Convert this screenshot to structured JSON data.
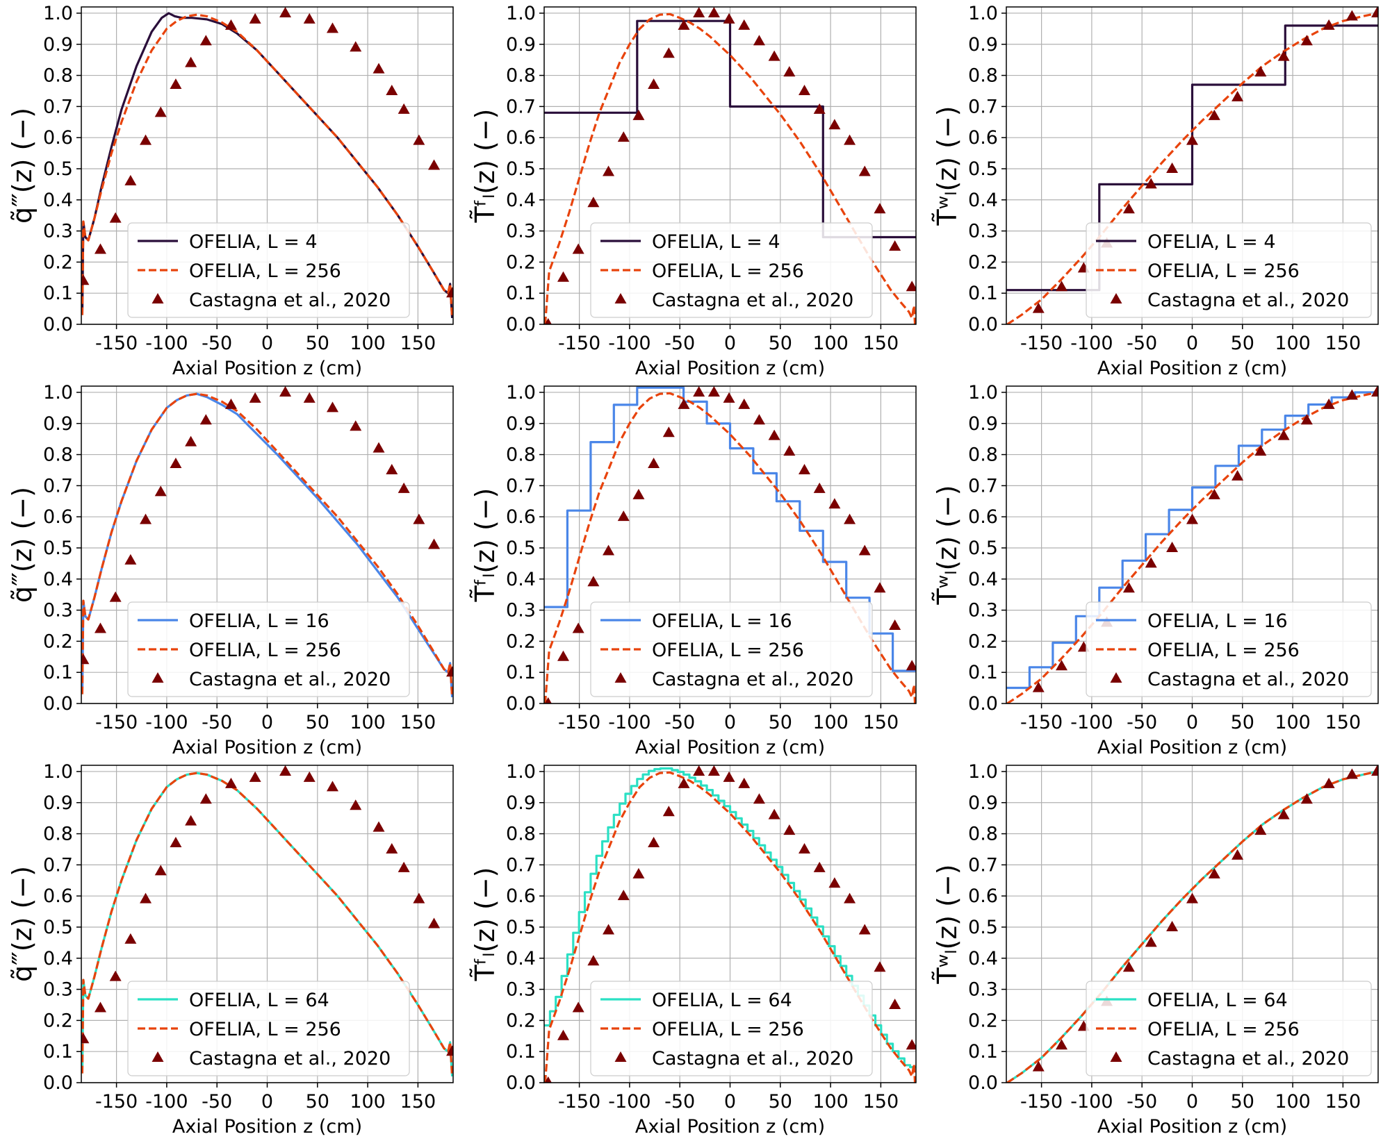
{
  "figure": {
    "colors": {
      "L4": "#2a0e3a",
      "L16": "#4a86e8",
      "L64": "#2be0c4",
      "L256": "#e8430c",
      "castagna": "#7a0000",
      "grid": "#b0b0b0"
    }
  },
  "chart_data": [
    {
      "type": "line",
      "variable": "q",
      "ylabel": "q̃‴(z) (−)",
      "xlabel": "Axial Position z (cm)",
      "x_ticks": [
        "-150",
        "-100",
        "-50",
        "0",
        "50",
        "100",
        "150"
      ],
      "y_ticks": [
        "0.0",
        "0.1",
        "0.2",
        "0.3",
        "0.4",
        "0.5",
        "0.6",
        "0.7",
        "0.8",
        "0.9",
        "1.0"
      ],
      "xlim": [
        -185,
        185
      ],
      "ylim": [
        0,
        1.02
      ],
      "grid": true,
      "legend_position": "lower-center",
      "series": [
        {
          "name": "OFELIA, L = 4",
          "style": "solid",
          "color_key": "L4",
          "shape": "q-l4"
        },
        {
          "name": "OFELIA, L = 256",
          "style": "dashed",
          "color_key": "L256",
          "shape": "q-ref"
        },
        {
          "name": "Castagna et al., 2020",
          "style": "markers",
          "color_key": "castagna",
          "shape": "castagna-q"
        }
      ]
    },
    {
      "type": "line",
      "variable": "tf",
      "ylabel": "T̃ᶠₗ(z) (−)",
      "xlabel": "Axial Position z (cm)",
      "x_ticks": [
        "-150",
        "-100",
        "-50",
        "0",
        "50",
        "100",
        "150"
      ],
      "y_ticks": [
        "0.0",
        "0.1",
        "0.2",
        "0.3",
        "0.4",
        "0.5",
        "0.6",
        "0.7",
        "0.8",
        "0.9",
        "1.0"
      ],
      "xlim": [
        -185,
        185
      ],
      "ylim": [
        0,
        1.02
      ],
      "grid": true,
      "legend_position": "lower-center",
      "series": [
        {
          "name": "OFELIA, L = 4",
          "style": "solid",
          "color_key": "L4",
          "shape": "steps",
          "steps": [
            0.68,
            0.975,
            0.7,
            0.28
          ]
        },
        {
          "name": "OFELIA, L = 256",
          "style": "dashed",
          "color_key": "L256",
          "shape": "tf-ref"
        },
        {
          "name": "Castagna et al., 2020",
          "style": "markers",
          "color_key": "castagna",
          "shape": "castagna-tf"
        }
      ]
    },
    {
      "type": "line",
      "variable": "tw",
      "ylabel": "T̃ʷₗ(z) (−)",
      "xlabel": "Axial Position z (cm)",
      "x_ticks": [
        "-150",
        "-100",
        "-50",
        "0",
        "50",
        "100",
        "150"
      ],
      "y_ticks": [
        "0.0",
        "0.1",
        "0.2",
        "0.3",
        "0.4",
        "0.5",
        "0.6",
        "0.7",
        "0.8",
        "0.9",
        "1.0"
      ],
      "xlim": [
        -185,
        185
      ],
      "ylim": [
        0,
        1.02
      ],
      "grid": true,
      "legend_position": "lower-center",
      "series": [
        {
          "name": "OFELIA, L = 4",
          "style": "solid",
          "color_key": "L4",
          "shape": "steps",
          "steps": [
            0.11,
            0.45,
            0.77,
            0.96
          ]
        },
        {
          "name": "OFELIA, L = 256",
          "style": "dashed",
          "color_key": "L256",
          "shape": "tw-ref"
        },
        {
          "name": "Castagna et al., 2020",
          "style": "markers",
          "color_key": "castagna",
          "shape": "castagna-tw"
        }
      ]
    },
    {
      "type": "line",
      "variable": "q",
      "ylabel": "q̃‴(z) (−)",
      "xlabel": "Axial Position z (cm)",
      "x_ticks": [
        "-150",
        "-100",
        "-50",
        "0",
        "50",
        "100",
        "150"
      ],
      "y_ticks": [
        "0.0",
        "0.1",
        "0.2",
        "0.3",
        "0.4",
        "0.5",
        "0.6",
        "0.7",
        "0.8",
        "0.9",
        "1.0"
      ],
      "xlim": [
        -185,
        185
      ],
      "ylim": [
        0,
        1.02
      ],
      "grid": true,
      "legend_position": "lower-center",
      "series": [
        {
          "name": "OFELIA, L = 16",
          "style": "solid",
          "color_key": "L16",
          "shape": "q-l16"
        },
        {
          "name": "OFELIA, L = 256",
          "style": "dashed",
          "color_key": "L256",
          "shape": "q-ref"
        },
        {
          "name": "Castagna et al., 2020",
          "style": "markers",
          "color_key": "castagna",
          "shape": "castagna-q"
        }
      ]
    },
    {
      "type": "line",
      "variable": "tf",
      "ylabel": "T̃ᶠₗ(z) (−)",
      "xlabel": "Axial Position z (cm)",
      "x_ticks": [
        "-150",
        "-100",
        "-50",
        "0",
        "50",
        "100",
        "150"
      ],
      "y_ticks": [
        "0.0",
        "0.1",
        "0.2",
        "0.3",
        "0.4",
        "0.5",
        "0.6",
        "0.7",
        "0.8",
        "0.9",
        "1.0"
      ],
      "xlim": [
        -185,
        185
      ],
      "ylim": [
        0,
        1.02
      ],
      "grid": true,
      "legend_position": "lower-center",
      "series": [
        {
          "name": "OFELIA, L = 16",
          "style": "solid",
          "color_key": "L16",
          "shape": "steps",
          "steps": [
            0.31,
            0.62,
            0.84,
            0.96,
            1.015,
            1.015,
            0.97,
            0.9,
            0.82,
            0.74,
            0.65,
            0.555,
            0.455,
            0.34,
            0.225,
            0.105
          ]
        },
        {
          "name": "OFELIA, L = 256",
          "style": "dashed",
          "color_key": "L256",
          "shape": "tf-ref"
        },
        {
          "name": "Castagna et al., 2020",
          "style": "markers",
          "color_key": "castagna",
          "shape": "castagna-tf"
        }
      ]
    },
    {
      "type": "line",
      "variable": "tw",
      "ylabel": "T̃ʷₗ(z) (−)",
      "xlabel": "Axial Position z (cm)",
      "x_ticks": [
        "-150",
        "-100",
        "-50",
        "0",
        "50",
        "100",
        "150"
      ],
      "y_ticks": [
        "0.0",
        "0.1",
        "0.2",
        "0.3",
        "0.4",
        "0.5",
        "0.6",
        "0.7",
        "0.8",
        "0.9",
        "1.0"
      ],
      "xlim": [
        -185,
        185
      ],
      "ylim": [
        0,
        1.02
      ],
      "grid": true,
      "legend_position": "lower-center",
      "series": [
        {
          "name": "OFELIA, L = 16",
          "style": "solid",
          "color_key": "L16",
          "shape": "steps-cumulative",
          "levels": 16
        },
        {
          "name": "OFELIA, L = 256",
          "style": "dashed",
          "color_key": "L256",
          "shape": "tw-ref"
        },
        {
          "name": "Castagna et al., 2020",
          "style": "markers",
          "color_key": "castagna",
          "shape": "castagna-tw"
        }
      ]
    },
    {
      "type": "line",
      "variable": "q",
      "ylabel": "q̃‴(z) (−)",
      "xlabel": "Axial Position z (cm)",
      "x_ticks": [
        "-150",
        "-100",
        "-50",
        "0",
        "50",
        "100",
        "150"
      ],
      "y_ticks": [
        "0.0",
        "0.1",
        "0.2",
        "0.3",
        "0.4",
        "0.5",
        "0.6",
        "0.7",
        "0.8",
        "0.9",
        "1.0"
      ],
      "xlim": [
        -185,
        185
      ],
      "ylim": [
        0,
        1.02
      ],
      "grid": true,
      "legend_position": "lower-center",
      "series": [
        {
          "name": "OFELIA, L = 64",
          "style": "solid",
          "color_key": "L64",
          "shape": "q-ref"
        },
        {
          "name": "OFELIA, L = 256",
          "style": "dashed",
          "color_key": "L256",
          "shape": "q-ref"
        },
        {
          "name": "Castagna et al., 2020",
          "style": "markers",
          "color_key": "castagna",
          "shape": "castagna-q"
        }
      ]
    },
    {
      "type": "line",
      "variable": "tf",
      "ylabel": "T̃ᶠₗ(z) (−)",
      "xlabel": "Axial Position z (cm)",
      "x_ticks": [
        "-150",
        "-100",
        "-50",
        "0",
        "50",
        "100",
        "150"
      ],
      "y_ticks": [
        "0.0",
        "0.1",
        "0.2",
        "0.3",
        "0.4",
        "0.5",
        "0.6",
        "0.7",
        "0.8",
        "0.9",
        "1.0"
      ],
      "xlim": [
        -185,
        185
      ],
      "ylim": [
        0,
        1.02
      ],
      "grid": true,
      "legend_position": "lower-center",
      "series": [
        {
          "name": "OFELIA, L = 64",
          "style": "solid",
          "color_key": "L64",
          "shape": "steps-of-curve",
          "levels": 64,
          "of": "tf-l64"
        },
        {
          "name": "OFELIA, L = 256",
          "style": "dashed",
          "color_key": "L256",
          "shape": "tf-ref"
        },
        {
          "name": "Castagna et al., 2020",
          "style": "markers",
          "color_key": "castagna",
          "shape": "castagna-tf"
        }
      ]
    },
    {
      "type": "line",
      "variable": "tw",
      "ylabel": "T̃ʷₗ(z) (−)",
      "xlabel": "Axial Position z (cm)",
      "x_ticks": [
        "-150",
        "-100",
        "-50",
        "0",
        "50",
        "100",
        "150"
      ],
      "y_ticks": [
        "0.0",
        "0.1",
        "0.2",
        "0.3",
        "0.4",
        "0.5",
        "0.6",
        "0.7",
        "0.8",
        "0.9",
        "1.0"
      ],
      "xlim": [
        -185,
        185
      ],
      "ylim": [
        0,
        1.02
      ],
      "grid": true,
      "legend_position": "lower-center",
      "series": [
        {
          "name": "OFELIA, L = 64",
          "style": "solid",
          "color_key": "L64",
          "shape": "tw-ref"
        },
        {
          "name": "OFELIA, L = 256",
          "style": "dashed",
          "color_key": "L256",
          "shape": "tw-ref"
        },
        {
          "name": "Castagna et al., 2020",
          "style": "markers",
          "color_key": "castagna",
          "shape": "castagna-tw"
        }
      ]
    }
  ],
  "reference_curves": {
    "q-ref": {
      "x": [
        -184,
        -183,
        -181,
        -178,
        -172,
        -165,
        -155,
        -145,
        -130,
        -115,
        -100,
        -90,
        -80,
        -70,
        -60,
        -45,
        -30,
        -10,
        10,
        30,
        50,
        70,
        90,
        110,
        130,
        150,
        165,
        176,
        180,
        182,
        184
      ],
      "y": [
        0.03,
        0.33,
        0.28,
        0.27,
        0.34,
        0.43,
        0.55,
        0.65,
        0.78,
        0.88,
        0.95,
        0.975,
        0.99,
        0.995,
        0.99,
        0.97,
        0.94,
        0.88,
        0.81,
        0.74,
        0.67,
        0.6,
        0.52,
        0.44,
        0.35,
        0.25,
        0.17,
        0.11,
        0.1,
        0.13,
        0.02
      ]
    },
    "q-l4": {
      "x": [
        -184,
        -183,
        -181,
        -178,
        -172,
        -165,
        -155,
        -145,
        -130,
        -115,
        -105,
        -98,
        -92,
        -85,
        -75,
        -60,
        -45,
        -30,
        -10,
        10,
        30,
        50,
        70,
        90,
        110,
        130,
        150,
        165,
        176,
        180,
        182,
        184
      ],
      "y": [
        0.03,
        0.33,
        0.28,
        0.27,
        0.34,
        0.44,
        0.57,
        0.69,
        0.83,
        0.94,
        0.985,
        1.0,
        0.99,
        0.985,
        0.985,
        0.98,
        0.965,
        0.935,
        0.88,
        0.81,
        0.74,
        0.67,
        0.6,
        0.52,
        0.44,
        0.35,
        0.25,
        0.17,
        0.11,
        0.1,
        0.13,
        0.02
      ]
    },
    "q-l16": {
      "x": [
        -184,
        -183,
        -181,
        -178,
        -172,
        -165,
        -155,
        -145,
        -130,
        -115,
        -100,
        -90,
        -80,
        -70,
        -60,
        -45,
        -30,
        -10,
        10,
        30,
        50,
        70,
        90,
        110,
        130,
        150,
        165,
        176,
        180,
        182,
        184
      ],
      "y": [
        0.03,
        0.33,
        0.28,
        0.27,
        0.34,
        0.43,
        0.55,
        0.65,
        0.78,
        0.88,
        0.95,
        0.975,
        0.99,
        0.995,
        0.985,
        0.96,
        0.93,
        0.865,
        0.8,
        0.73,
        0.66,
        0.585,
        0.51,
        0.425,
        0.34,
        0.24,
        0.165,
        0.11,
        0.1,
        0.13,
        0.02
      ]
    },
    "tf-ref": {
      "x": [
        -184,
        -180,
        -170,
        -160,
        -150,
        -140,
        -130,
        -120,
        -110,
        -100,
        -90,
        -80,
        -70,
        -60,
        -50,
        -40,
        -30,
        -20,
        -10,
        0,
        10,
        20,
        30,
        40,
        50,
        60,
        70,
        80,
        90,
        100,
        110,
        120,
        130,
        140,
        150,
        160,
        170,
        178,
        181,
        183,
        184
      ],
      "y": [
        0.0,
        0.17,
        0.26,
        0.36,
        0.47,
        0.58,
        0.68,
        0.76,
        0.84,
        0.9,
        0.95,
        0.98,
        0.995,
        0.997,
        0.985,
        0.97,
        0.95,
        0.925,
        0.895,
        0.865,
        0.83,
        0.795,
        0.755,
        0.715,
        0.675,
        0.63,
        0.585,
        0.535,
        0.485,
        0.43,
        0.375,
        0.32,
        0.265,
        0.21,
        0.16,
        0.11,
        0.07,
        0.04,
        0.02,
        0.06,
        0.0
      ]
    },
    "tf-l64": {
      "x": [
        -184,
        -180,
        -170,
        -160,
        -150,
        -140,
        -130,
        -120,
        -110,
        -100,
        -90,
        -80,
        -70,
        -60,
        -50,
        -40,
        -30,
        -20,
        -10,
        0,
        10,
        20,
        30,
        40,
        50,
        60,
        70,
        80,
        90,
        100,
        110,
        120,
        130,
        140,
        150,
        160,
        170,
        178,
        184
      ],
      "y": [
        0.17,
        0.2,
        0.28,
        0.4,
        0.52,
        0.63,
        0.73,
        0.81,
        0.88,
        0.935,
        0.975,
        1.0,
        1.01,
        1.01,
        1.0,
        0.985,
        0.965,
        0.94,
        0.91,
        0.88,
        0.845,
        0.81,
        0.77,
        0.73,
        0.69,
        0.645,
        0.6,
        0.55,
        0.5,
        0.445,
        0.39,
        0.335,
        0.28,
        0.225,
        0.17,
        0.12,
        0.08,
        0.05,
        0.05
      ]
    },
    "tw-ref": {
      "x": [
        -184,
        -170,
        -150,
        -130,
        -110,
        -90,
        -70,
        -50,
        -30,
        -10,
        10,
        30,
        50,
        70,
        90,
        110,
        130,
        150,
        170,
        184
      ],
      "y": [
        0.0,
        0.03,
        0.08,
        0.145,
        0.215,
        0.29,
        0.37,
        0.445,
        0.52,
        0.59,
        0.655,
        0.715,
        0.775,
        0.83,
        0.875,
        0.915,
        0.95,
        0.975,
        0.99,
        1.0
      ]
    },
    "castagna-q": {
      "x": [
        -183,
        -166,
        -151,
        -136,
        -121,
        -106,
        -91,
        -76,
        -61,
        -36,
        -12,
        18,
        42,
        65,
        88,
        111,
        124,
        136,
        151,
        166,
        184
      ],
      "y": [
        0.14,
        0.24,
        0.34,
        0.46,
        0.59,
        0.68,
        0.77,
        0.84,
        0.91,
        0.96,
        0.98,
        1.0,
        0.98,
        0.95,
        0.89,
        0.82,
        0.75,
        0.69,
        0.59,
        0.51,
        0.1
      ]
    },
    "castagna-tf": {
      "x": [
        -181,
        -166,
        -151,
        -136,
        -121,
        -106,
        -91,
        -76,
        -61,
        -46,
        -31,
        -16,
        -1,
        14,
        29,
        44,
        59,
        74,
        89,
        104,
        119,
        134,
        149,
        164,
        181
      ],
      "y": [
        0.0,
        0.15,
        0.24,
        0.39,
        0.49,
        0.6,
        0.67,
        0.77,
        0.87,
        0.96,
        1.0,
        1.0,
        0.98,
        0.96,
        0.91,
        0.86,
        0.81,
        0.75,
        0.69,
        0.64,
        0.59,
        0.49,
        0.37,
        0.25,
        0.12
      ]
    },
    "castagna-tw": {
      "x": [
        -153,
        -130,
        -108,
        -85,
        -63,
        -41,
        -20,
        0,
        22,
        45,
        68,
        91,
        114,
        136,
        159,
        184
      ],
      "y": [
        0.05,
        0.12,
        0.18,
        0.26,
        0.37,
        0.45,
        0.5,
        0.59,
        0.67,
        0.73,
        0.81,
        0.86,
        0.91,
        0.96,
        0.99,
        1.0
      ]
    }
  }
}
